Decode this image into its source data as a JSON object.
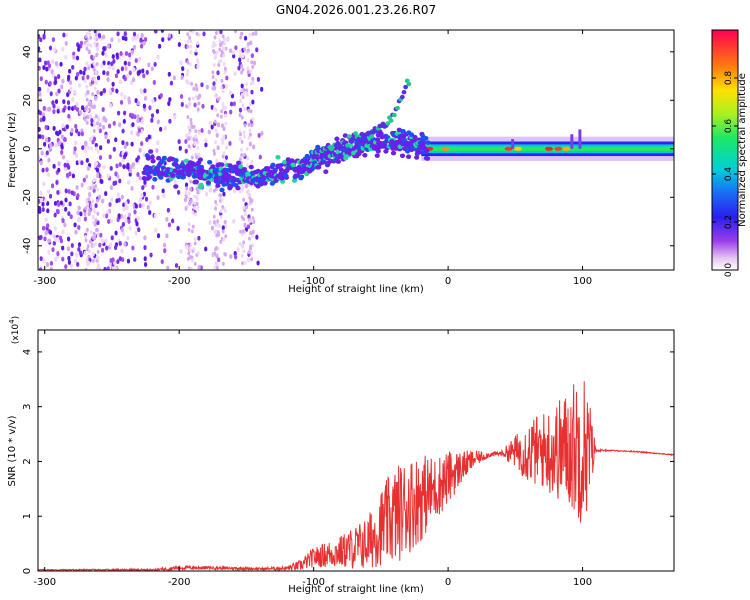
{
  "title": "GN04.2026.001.23.26.R07",
  "colors": {
    "snr_line": "#e83030",
    "spectrogram_low": "#7b3ff0",
    "spectrogram_high": "#ff0000"
  },
  "chart_data": [
    {
      "type": "heatmap",
      "xlabel": "Height of straight line (km)",
      "ylabel": "Frequency (Hz)",
      "xlim": [
        -305,
        168
      ],
      "ylim": [
        -50,
        49
      ],
      "x_ticks": [
        "-300",
        "-200",
        "-100",
        "0",
        "100"
      ],
      "y_ticks": [
        "40",
        "20",
        "0",
        "-20",
        "-40"
      ],
      "colorbar": {
        "label": "Normalized spectral amplitude",
        "range": [
          0,
          1
        ],
        "ticks": [
          "0.0",
          "0.2",
          "0.4",
          "0.6",
          "0.8"
        ]
      },
      "ridge": {
        "x": [
          -220,
          -200,
          -180,
          -160,
          -140,
          -120,
          -100,
          -80,
          -60,
          -45,
          -30,
          -20,
          0,
          20,
          40,
          60,
          80,
          100,
          120,
          168
        ],
        "frequency": [
          -8,
          -9,
          -10,
          -11,
          -12,
          -9,
          -5,
          -1,
          2,
          3,
          2,
          1,
          0,
          0,
          0,
          0,
          0,
          0,
          0,
          0
        ]
      },
      "upper_branch": {
        "x": [
          -100,
          -80,
          -60,
          -45,
          -35,
          -30
        ],
        "frequency": [
          -2,
          2,
          6,
          10,
          20,
          28
        ]
      }
    },
    {
      "type": "line",
      "xlabel": "Height of straight line (km)",
      "ylabel": "SNR (10 * v/v)",
      "yscale_label": "(x10",
      "yscale_exp": "4",
      "xlim": [
        -305,
        168
      ],
      "ylim": [
        0,
        4.4
      ],
      "x_ticks": [
        "-300",
        "-200",
        "-100",
        "0",
        "100"
      ],
      "y_ticks": [
        "0",
        "1",
        "2",
        "3",
        "4"
      ],
      "envelope": {
        "x": [
          -305,
          -220,
          -200,
          -180,
          -160,
          -140,
          -120,
          -110,
          -100,
          -80,
          -60,
          -50,
          -40,
          -30,
          -20,
          -10,
          0,
          10,
          20,
          30,
          40,
          50,
          60,
          70,
          80,
          90,
          100,
          105,
          110,
          120,
          140,
          168
        ],
        "mean": [
          0.02,
          0.02,
          0.06,
          0.06,
          0.05,
          0.04,
          0.05,
          0.1,
          0.25,
          0.35,
          0.5,
          0.8,
          1.0,
          1.2,
          1.35,
          1.5,
          1.7,
          1.9,
          2.05,
          2.12,
          2.15,
          2.18,
          2.18,
          2.2,
          2.2,
          2.25,
          2.3,
          2.2,
          2.2,
          2.2,
          2.18,
          2.12
        ],
        "noise": [
          0.01,
          0.02,
          0.04,
          0.03,
          0.03,
          0.02,
          0.04,
          0.1,
          0.18,
          0.3,
          0.5,
          0.7,
          0.9,
          0.9,
          0.8,
          0.6,
          0.5,
          0.3,
          0.15,
          0.05,
          0.05,
          0.3,
          0.6,
          0.7,
          0.9,
          1.1,
          1.5,
          1.0,
          0.02,
          0.01,
          0.01,
          0.01
        ]
      }
    }
  ]
}
